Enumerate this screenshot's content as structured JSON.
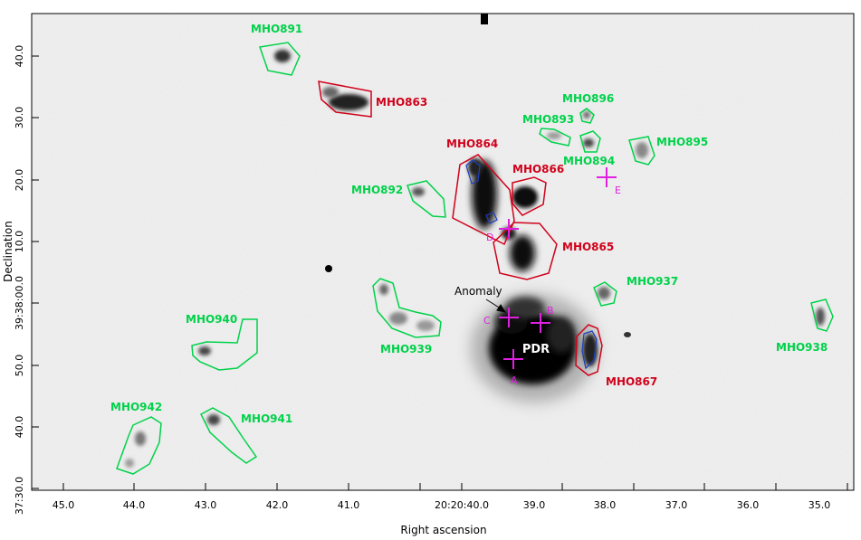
{
  "axes": {
    "xlabel": "Right ascension",
    "ylabel": "Declination",
    "x_ticks": [
      "45.0",
      "44.0",
      "43.0",
      "42.0",
      "41.0",
      "20:20:40.0",
      "39.0",
      "38.0",
      "37.0",
      "36.0",
      "35.0"
    ],
    "y_ticks": [
      "40.0",
      "30.0",
      "20.0",
      "10.0",
      "39:38:00.0",
      "50.0",
      "40.0",
      "37:30.0"
    ]
  },
  "colors": {
    "mho_green": "#00d24a",
    "mho_red": "#d0021b",
    "marker_magenta": "#e020e0",
    "contour_blue": "#1f3fbf",
    "background": "#efefef"
  },
  "green_objects": [
    "MHO891",
    "MHO892",
    "MHO893",
    "MHO894",
    "MHO895",
    "MHO896",
    "MHO937",
    "MHO938",
    "MHO939",
    "MHO940",
    "MHO941",
    "MHO942"
  ],
  "red_objects": [
    "MHO863",
    "MHO864",
    "MHO865",
    "MHO866",
    "MHO867"
  ],
  "markers": [
    "A",
    "B",
    "C",
    "D",
    "E"
  ],
  "annotations": {
    "pdr": "PDR",
    "anomaly": "Anomaly"
  }
}
